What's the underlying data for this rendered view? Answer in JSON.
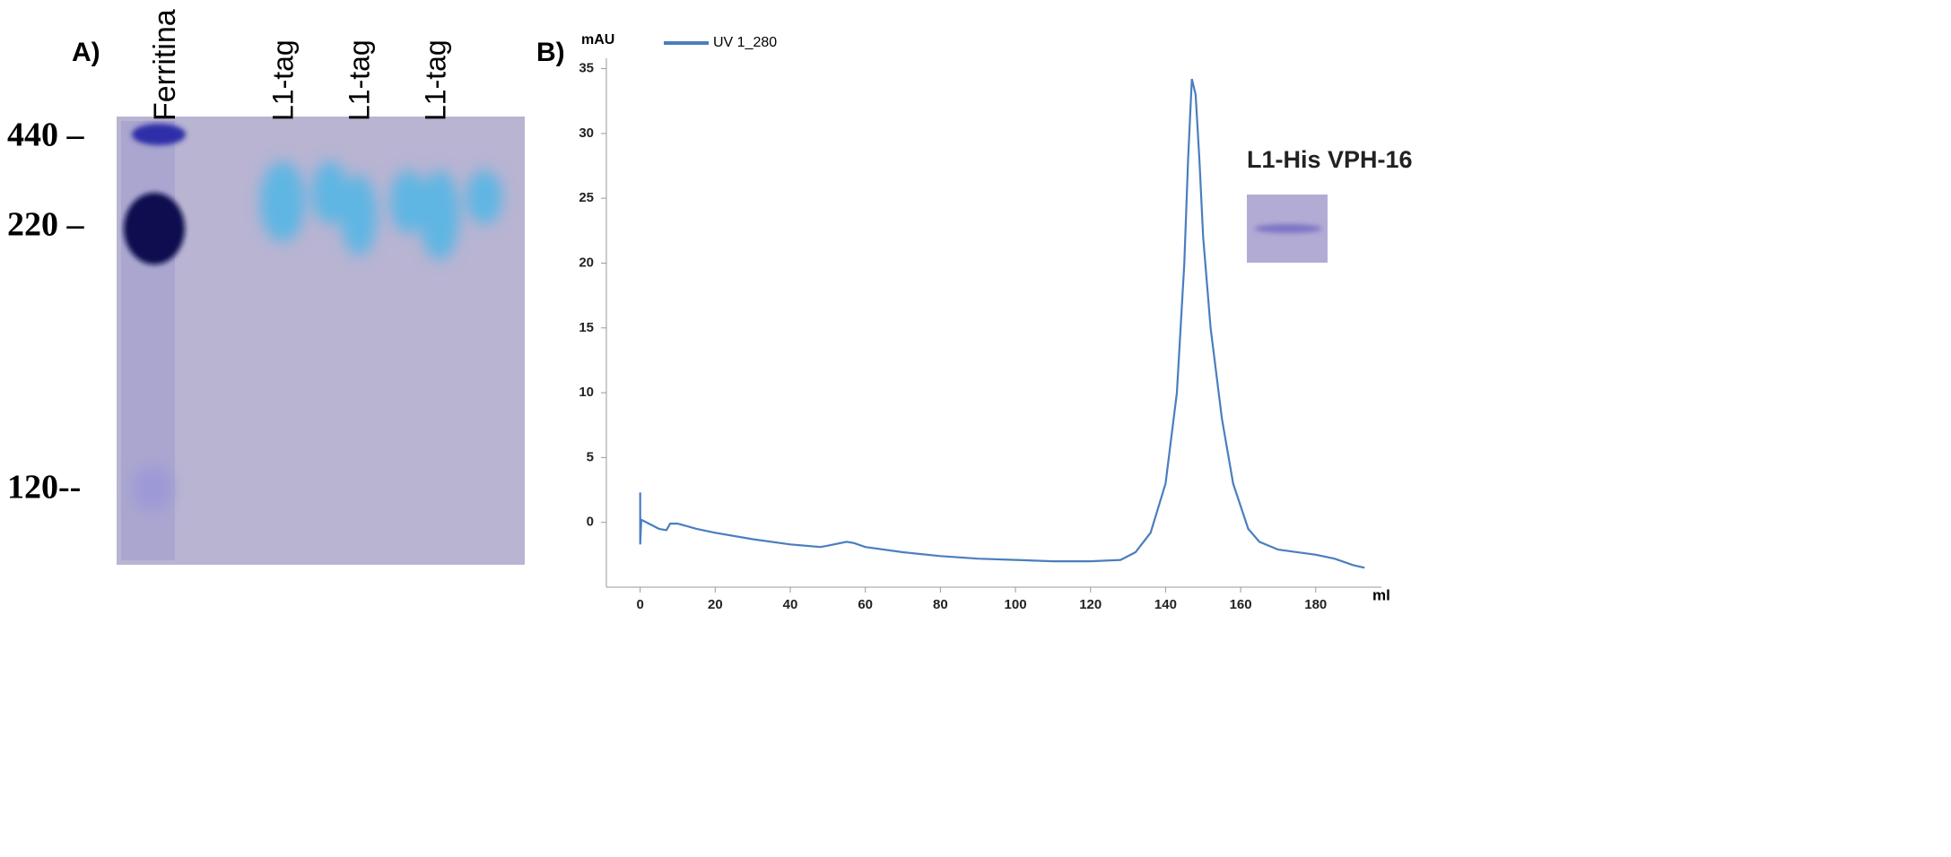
{
  "gel": {
    "panel_label": "A)",
    "lanes": [
      "Ferritina",
      "L1-tag",
      "L1-tag",
      "L1-tag"
    ],
    "markers": [
      "440 –",
      "220 –",
      "120--"
    ]
  },
  "chart_data": {
    "type": "line",
    "panel_label": "B)",
    "y_label": "mAU",
    "x_label": "ml",
    "annotation": "L1-His VPH-16",
    "x": [
      0,
      0,
      0.3,
      5,
      7,
      8,
      10,
      15,
      20,
      30,
      40,
      48,
      50,
      55,
      57,
      60,
      70,
      80,
      90,
      100,
      110,
      120,
      128,
      132,
      136,
      140,
      143,
      145,
      146,
      147,
      148,
      149,
      150,
      152,
      155,
      158,
      162,
      165,
      170,
      180,
      185,
      190,
      193
    ],
    "series": [
      {
        "name": "UV 1_280",
        "color": "#4a7ebf",
        "values": [
          2.3,
          -1.7,
          0.2,
          -0.5,
          -0.6,
          -0.1,
          -0.1,
          -0.5,
          -0.8,
          -1.3,
          -1.7,
          -1.9,
          -1.8,
          -1.5,
          -1.6,
          -1.9,
          -2.3,
          -2.6,
          -2.8,
          -2.9,
          -3.0,
          -3.0,
          -2.9,
          -2.3,
          -0.8,
          3,
          10,
          20,
          28,
          34.2,
          33,
          28,
          22,
          15,
          8,
          3,
          -0.5,
          -1.5,
          -2.1,
          -2.5,
          -2.8,
          -3.3,
          -3.5
        ]
      }
    ],
    "xlim": [
      -9,
      197.5
    ],
    "ylim": [
      -5,
      35.8
    ],
    "xticks": [
      0,
      20,
      40,
      60,
      80,
      100,
      120,
      140,
      160,
      180
    ],
    "yticks": [
      0,
      5,
      10,
      15,
      20,
      25,
      30,
      35
    ]
  }
}
